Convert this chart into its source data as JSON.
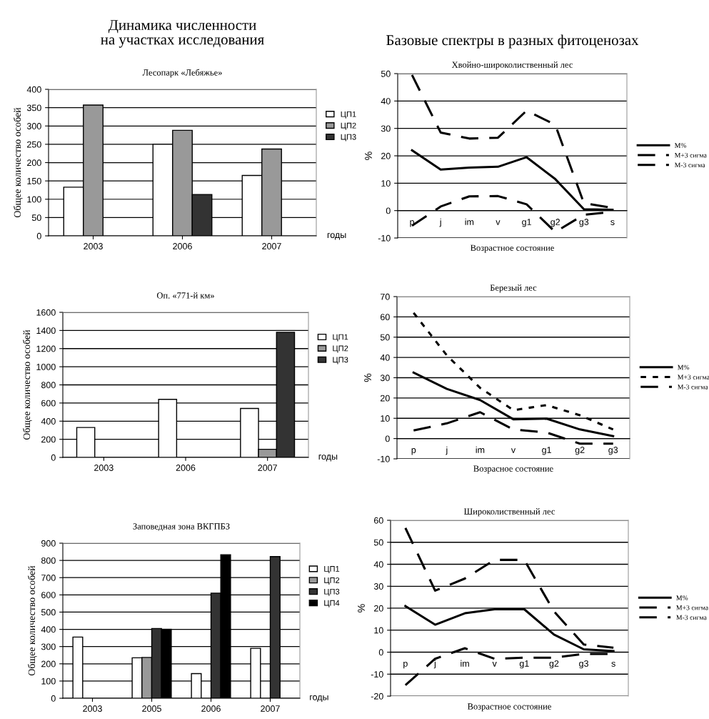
{
  "chart_data": [
    {
      "type": "bar",
      "title": "Лесопарк «Лебяжье»",
      "annotations": [
        "Динамика численности\nна участках исследования"
      ],
      "xlabel": "годы",
      "ylabel": "Общее количество особей",
      "categories": [
        "2003",
        "2006",
        "2007"
      ],
      "series": [
        {
          "name": "ЦП1",
          "color": "#ffffff",
          "values": [
            133,
            250,
            165
          ]
        },
        {
          "name": "ЦП2",
          "color": "#999999",
          "values": [
            357,
            288,
            237
          ]
        },
        {
          "name": "ЦП3",
          "color": "#333333",
          "values": [
            null,
            113,
            null
          ]
        }
      ],
      "ylim": [
        0,
        400
      ],
      "yticks": [
        0,
        50,
        100,
        150,
        200,
        250,
        300,
        350,
        400
      ],
      "grid": "y",
      "legend": "right"
    },
    {
      "type": "bar",
      "title": "Оп. «771-й км»",
      "xlabel": "годы",
      "ylabel": "Общее количество особей",
      "categories": [
        "2003",
        "2006",
        "2007"
      ],
      "series": [
        {
          "name": "ЦП1",
          "color": "#ffffff",
          "values": [
            330,
            640,
            540
          ]
        },
        {
          "name": "ЦП2",
          "color": "#999999",
          "values": [
            null,
            null,
            90
          ]
        },
        {
          "name": "ЦП3",
          "color": "#333333",
          "values": [
            null,
            null,
            1380
          ]
        }
      ],
      "ylim": [
        0,
        1600
      ],
      "yticks": [
        0,
        200,
        400,
        600,
        800,
        1000,
        1200,
        1400,
        1600
      ],
      "grid": "y",
      "legend": "right"
    },
    {
      "type": "bar",
      "title": "Заповедная зона ВКГПБЗ",
      "xlabel": "годы",
      "ylabel": "Общее количество особей",
      "categories": [
        "2003",
        "2005",
        "2006",
        "2007"
      ],
      "series": [
        {
          "name": "ЦП1",
          "color": "#ffffff",
          "values": [
            355,
            235,
            143,
            290
          ]
        },
        {
          "name": "ЦП2",
          "color": "#999999",
          "values": [
            null,
            237,
            null,
            null
          ]
        },
        {
          "name": "ЦП3",
          "color": "#333333",
          "values": [
            null,
            405,
            610,
            822
          ]
        },
        {
          "name": "ЦП4",
          "color": "#000000",
          "values": [
            null,
            400,
            833,
            null
          ]
        }
      ],
      "ylim": [
        0,
        900
      ],
      "yticks": [
        0,
        100,
        200,
        300,
        400,
        500,
        600,
        700,
        800,
        900
      ],
      "grid": "y",
      "legend": "right"
    },
    {
      "type": "line",
      "title": "Хвойно-широколиственный лес",
      "annotations": [
        "Базовые спектры в разных фитоценозах"
      ],
      "xlabel": "Возрастное состояние",
      "ylabel": "%",
      "categories": [
        "p",
        "j",
        "im",
        "v",
        "g1",
        "g2",
        "g3",
        "s"
      ],
      "series": [
        {
          "name": "M%",
          "color": "#000000",
          "line_style": "solid",
          "values": [
            22,
            15,
            15.7,
            16,
            19.5,
            11.5,
            0.5,
            0.3
          ]
        },
        {
          "name": "M+3 сигма",
          "color": "#000000",
          "line_style": "dashed",
          "values": [
            49.5,
            28.5,
            26.3,
            26.6,
            36.5,
            31.3,
            2.7,
            1
          ]
        },
        {
          "name": "M-3 сигма",
          "color": "#000000",
          "line_style": "dashed",
          "values": [
            -5.5,
            1.5,
            5.2,
            5.3,
            2.3,
            -7.8,
            -1.5,
            -0.5
          ]
        }
      ],
      "ylim": [
        -10,
        50
      ],
      "yticks": [
        -10,
        0,
        10,
        20,
        30,
        40,
        50
      ],
      "grid": "y",
      "legend": "right",
      "marker": "none"
    },
    {
      "type": "line",
      "title": "Березый лес",
      "xlabel": "Возрасное состояние",
      "ylabel": "%",
      "categories": [
        "p",
        "j",
        "im",
        "v",
        "g1",
        "g2",
        "g3"
      ],
      "series": [
        {
          "name": "M%",
          "color": "#000000",
          "line_style": "solid",
          "values": [
            32.5,
            24.5,
            19,
            9.5,
            9.8,
            4.5,
            1.2
          ]
        },
        {
          "name": "M+3 сигма",
          "color": "#000000",
          "line_style": "dotted",
          "values": [
            62,
            41,
            25,
            14,
            16.5,
            11.5,
            4.5
          ]
        },
        {
          "name": "M-3 сигма",
          "color": "#000000",
          "line_style": "dashed",
          "values": [
            4,
            7.5,
            13,
            4.5,
            3,
            -2.5,
            -2.5
          ]
        }
      ],
      "ylim": [
        -10,
        70
      ],
      "yticks": [
        -10,
        0,
        10,
        20,
        30,
        40,
        50,
        60,
        70
      ],
      "grid": "y",
      "legend": "right",
      "marker": "none"
    },
    {
      "type": "line",
      "title": "Широколиственный лес",
      "xlabel": "Возрастное состояние",
      "ylabel": "%",
      "categories": [
        "p",
        "j",
        "im",
        "v",
        "g1",
        "g2",
        "g3",
        "s"
      ],
      "series": [
        {
          "name": "M%",
          "color": "#000000",
          "line_style": "solid",
          "values": [
            21,
            12.5,
            17.7,
            19.5,
            19.5,
            8,
            1.3,
            0.5
          ]
        },
        {
          "name": "M+3 сигма",
          "color": "#000000",
          "line_style": "dashed",
          "values": [
            56.5,
            28,
            33.5,
            42,
            42,
            18.5,
            3.5,
            2
          ]
        },
        {
          "name": "M-3 сигма",
          "color": "#000000",
          "line_style": "dashed",
          "values": [
            -15,
            -3,
            1.8,
            -3,
            -2.5,
            -2.5,
            -0.8,
            -0.8
          ]
        }
      ],
      "ylim": [
        -20,
        60
      ],
      "yticks": [
        -20,
        -10,
        0,
        10,
        20,
        30,
        40,
        50,
        60
      ],
      "grid": "y",
      "legend": "right",
      "marker": "none"
    }
  ]
}
